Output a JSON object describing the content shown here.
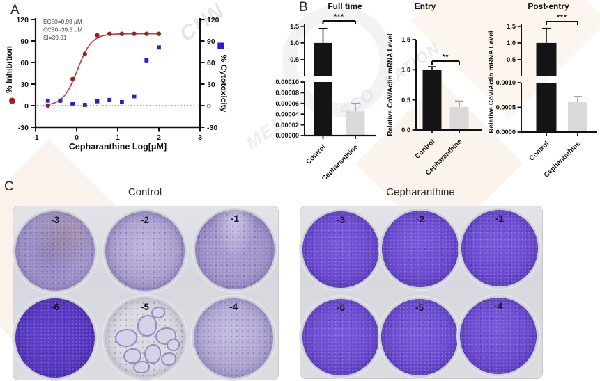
{
  "panels": {
    "a_label": "A",
    "b_label": "B",
    "c_label": "C"
  },
  "chart_data": [
    {
      "id": "dose-response",
      "type": "scatter",
      "panel": "A",
      "xlabel": "Cepharanthine Log[μM]",
      "x_range": [
        -1,
        3
      ],
      "x_ticks": [
        -1,
        0,
        1,
        2,
        3
      ],
      "left_axis": {
        "label": "% Inhibition",
        "marker": "circle",
        "color": "#9d2022",
        "range": [
          -30,
          120
        ],
        "ticks": [
          -30,
          0,
          30,
          60,
          90,
          120
        ]
      },
      "right_axis": {
        "label": "% Cytotoxicity",
        "marker": "square",
        "color": "#2a1fd4",
        "range": [
          -30,
          120
        ],
        "ticks": [
          -30,
          0,
          30,
          60,
          90,
          120
        ]
      },
      "annotations": [
        "EC50=0.98 μM",
        "CC50=39.3 μM",
        "SI=39.91"
      ],
      "zero_line": true,
      "series": [
        {
          "name": "% Inhibition",
          "marker": "circle",
          "color": "#9d2022",
          "curve_color": "#b24848",
          "x": [
            -0.7,
            -0.4,
            -0.1,
            0.2,
            0.5,
            0.8,
            1.1,
            1.4,
            1.7,
            2.0
          ],
          "y": [
            0,
            7,
            37,
            72,
            98,
            100,
            100,
            100,
            100,
            100
          ],
          "fit": {
            "type": "sigmoid",
            "ec50_log": 0.02,
            "hill": 2.5,
            "top": 100,
            "bottom": 0
          }
        },
        {
          "name": "% Cytotoxicity",
          "marker": "square",
          "color": "#2a1fd4",
          "x": [
            -0.7,
            -0.4,
            -0.1,
            0.2,
            0.5,
            0.8,
            1.1,
            1.4,
            1.7,
            2.0
          ],
          "y": [
            7,
            7,
            3,
            1,
            6,
            8,
            5,
            13,
            63,
            81
          ]
        }
      ]
    },
    {
      "id": "full-time",
      "type": "bar",
      "title": "Full time",
      "categories": [
        "Control",
        "Cepharanthine"
      ],
      "values": [
        1.0,
        4.5e-05
      ],
      "errors": [
        0.44,
        1.5e-05
      ],
      "bar_colors": [
        "#141414",
        "#d9d9d9"
      ],
      "error_colors": [
        "#141414",
        "#a0a0a0"
      ],
      "significance": "***",
      "y_axis_break": true,
      "top_ticks": [
        0.5,
        1.0,
        1.5
      ],
      "bottom_ticks": [
        0,
        2e-05,
        4e-05,
        6e-05,
        8e-05,
        0.0001
      ],
      "bottom_tick_labels": [
        "0.00000",
        "0.00002",
        "0.00004",
        "0.00006",
        "0.00008",
        "0.00010"
      ],
      "ylabel": ""
    },
    {
      "id": "entry",
      "type": "bar",
      "title": "Entry",
      "categories": [
        "Control",
        "Cepharanthine"
      ],
      "values": [
        1.0,
        0.38
      ],
      "errors": [
        0.05,
        0.1
      ],
      "bar_colors": [
        "#141414",
        "#d9d9d9"
      ],
      "error_colors": [
        "#141414",
        "#a0a0a0"
      ],
      "significance": "**",
      "y_axis_break": false,
      "ticks": [
        0,
        0.5,
        1.0,
        1.5
      ],
      "tick_labels": [
        "0.0",
        "0.5",
        "1.0",
        "1.5"
      ],
      "ylim": [
        0,
        1.5
      ],
      "ylabel": "Relative CoV/Actin mRNA Level"
    },
    {
      "id": "post-entry",
      "type": "bar",
      "title": "Post-entry",
      "categories": [
        "Control",
        "Cepharanthine"
      ],
      "values": [
        1.0,
        0.00062
      ],
      "errors": [
        0.44,
        0.0001
      ],
      "bar_colors": [
        "#141414",
        "#d9d9d9"
      ],
      "error_colors": [
        "#141414",
        "#a0a0a0"
      ],
      "significance": "***",
      "y_axis_break": true,
      "top_ticks": [
        0.5,
        1.0,
        1.5
      ],
      "bottom_ticks": [
        0,
        0.0005,
        0.001
      ],
      "bottom_tick_labels": [
        "0.0000",
        "0.0005",
        "0.0010"
      ],
      "ylabel": "Relative CoV/Actin mRNA Level"
    }
  ],
  "panel_c": {
    "plates": [
      {
        "title": "Control",
        "wells": [
          {
            "label": "-3",
            "appearance": "mottled-a"
          },
          {
            "label": "-2",
            "appearance": "mottled-b"
          },
          {
            "label": "-1",
            "appearance": "mottled-c"
          },
          {
            "label": "-6",
            "appearance": "dense-dark"
          },
          {
            "label": "-5",
            "appearance": "plaques"
          },
          {
            "label": "-4",
            "appearance": "pale"
          }
        ]
      },
      {
        "title": "Cepharanthine",
        "wells": [
          {
            "label": "-3",
            "appearance": "dense-purple"
          },
          {
            "label": "-2",
            "appearance": "dense-purple"
          },
          {
            "label": "-1",
            "appearance": "dense-purple"
          },
          {
            "label": "-6",
            "appearance": "dense-purple"
          },
          {
            "label": "-5",
            "appearance": "dense-purple"
          },
          {
            "label": "-4",
            "appearance": "dense-purple"
          }
        ]
      }
    ]
  },
  "watermark": {
    "fragments": [
      "CHN",
      "MED",
      "SSO",
      "LATION"
    ]
  }
}
